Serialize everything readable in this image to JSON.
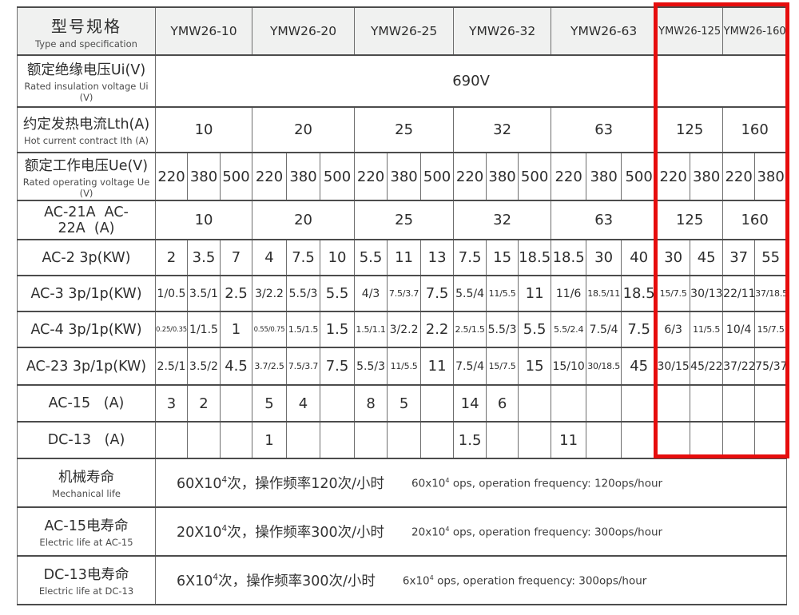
{
  "highlight": {
    "color": "#e60d0d"
  },
  "table": {
    "header": {
      "label_cn": "型号规格",
      "label_en": "Type and specification",
      "models": [
        "YMW26-10",
        "YMW26-20",
        "YMW26-25",
        "YMW26-32",
        "YMW26-63",
        "YMW26-125",
        "YMW26-160"
      ]
    },
    "rows": [
      {
        "id": "ui",
        "label_cn": "额定绝缘电压Ui(V)",
        "label_en": "Rated insulation voltage Ui (V)",
        "spans": [
          19
        ],
        "cells": [
          "690V"
        ]
      },
      {
        "id": "ith",
        "label_cn": "约定发热电流Lth(A)",
        "label_en": "Hot current contract Ith (A)",
        "spans": [
          3,
          3,
          3,
          3,
          3,
          2,
          2
        ],
        "cells": [
          "10",
          "20",
          "25",
          "32",
          "63",
          "125",
          "160"
        ]
      },
      {
        "id": "ue",
        "label_cn": "额定工作电压Ue(V)",
        "label_en": "Rated operating voltage Ue (V)",
        "cells": [
          "220",
          "380",
          "500",
          "220",
          "380",
          "500",
          "220",
          "380",
          "500",
          "220",
          "380",
          "500",
          "220",
          "380",
          "500",
          "220",
          "380",
          "220",
          "380"
        ]
      },
      {
        "id": "ac21",
        "label_cn": "AC-21A  AC-22A  (A)",
        "label_en": "",
        "spans": [
          3,
          3,
          3,
          3,
          3,
          2,
          2
        ],
        "cells": [
          "10",
          "20",
          "25",
          "32",
          "63",
          "125",
          "160"
        ]
      },
      {
        "id": "ac2",
        "label_cn": "AC-2 3p(KW)",
        "label_en": "",
        "cells": [
          "2",
          "3.5",
          "7",
          "4",
          "7.5",
          "10",
          "5.5",
          "11",
          "13",
          "7.5",
          "15",
          "18.5",
          "18.5",
          "30",
          "40",
          "30",
          "45",
          "37",
          "55"
        ]
      },
      {
        "id": "ac3",
        "label_cn": "AC-3 3p/1p(KW)",
        "label_en": "",
        "cells": [
          "1/0.5",
          "3.5/1",
          "2.5",
          "3/2.2",
          "5.5/3",
          "5.5",
          "4/3",
          "7.5/3.7",
          "7.5",
          "5.5/4",
          "11/5.5",
          "11",
          "11/6",
          "18.5/11",
          "18.5",
          "15/7.5",
          "30/13",
          "22/11",
          "37/18.5"
        ]
      },
      {
        "id": "ac4",
        "label_cn": "AC-4 3p/1p(KW)",
        "label_en": "",
        "cells": [
          "0.25/0.35",
          "1/1.5",
          "1",
          "0.55/0.75",
          "1.5/1.5",
          "1.5",
          "1.5/1.1",
          "3/2.2",
          "2.2",
          "2.5/1.5",
          "5.5/3",
          "5.5",
          "5.5/2.4",
          "7.5/4",
          "7.5",
          "6/3",
          "11/5.5",
          "10/4",
          "15/7.5"
        ]
      },
      {
        "id": "ac23",
        "label_cn": "AC-23 3p/1p(KW)",
        "label_en": "",
        "cells": [
          "2.5/1",
          "3.5/2",
          "4.5",
          "3.7/2.5",
          "7.5/3.7",
          "7.5",
          "5.5/3",
          "11/5.5",
          "11",
          "7.5/4",
          "15/7.5",
          "15",
          "15/10",
          "30/18.5",
          "45",
          "30/15",
          "45/22",
          "37/22",
          "75/37"
        ]
      },
      {
        "id": "ac15",
        "label_cn": "AC-15   (A)",
        "label_en": "",
        "cells": [
          "3",
          "2",
          "",
          "5",
          "4",
          "",
          "8",
          "5",
          "",
          "14",
          "6",
          "",
          "",
          "",
          "",
          "",
          "",
          "",
          ""
        ]
      },
      {
        "id": "dc13",
        "label_cn": "DC-13   (A)",
        "label_en": "",
        "cells": [
          "",
          "",
          "",
          "1",
          "",
          "",
          "",
          "",
          "",
          "1.5",
          "",
          "",
          "11",
          "",
          "",
          "",
          "",
          "",
          ""
        ]
      }
    ],
    "life_rows": [
      {
        "label_cn": "机械寿命",
        "label_en": "Mechanical life",
        "cn_base": "60X10",
        "sup": "4",
        "cn_rest": "次，操作频率120次/小时",
        "en_base": "60x10",
        "en_rest": " ops, operation frequency: 120ops/hour"
      },
      {
        "label_cn": "AC-15电寿命",
        "label_en": "Electric life at AC-15",
        "cn_base": "20X10",
        "sup": "4",
        "cn_rest": "次，操作频率300次/小时",
        "en_base": "20x10",
        "en_rest": " ops, operation frequency: 300ops/hour"
      },
      {
        "label_cn": "DC-13电寿命",
        "label_en": "Electric life at DC-13",
        "cn_base": "6X10",
        "sup": "4",
        "cn_rest": "次，操作频率300次/小时",
        "en_base": "6x10",
        "en_rest": " ops, operation frequency: 300ops/hour"
      }
    ]
  }
}
